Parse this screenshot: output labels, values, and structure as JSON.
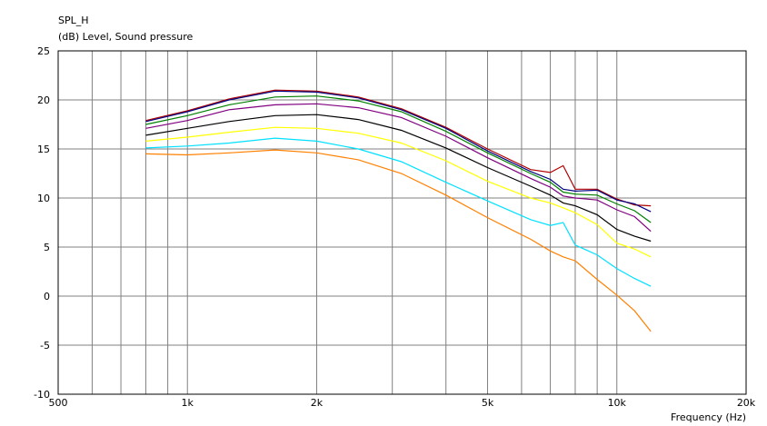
{
  "chart_data": {
    "type": "line",
    "title": "SPL_H",
    "ylabel": "(dB)  Level, Sound pressure",
    "xlabel": "Frequency  (Hz)",
    "xscale": "log",
    "xlim": [
      500,
      20000
    ],
    "ylim": [
      -10,
      25
    ],
    "grid": true,
    "x_ticks": [
      {
        "value": 500,
        "label": "500"
      },
      {
        "value": 1000,
        "label": "1k"
      },
      {
        "value": 2000,
        "label": "2k"
      },
      {
        "value": 5000,
        "label": "5k"
      },
      {
        "value": 10000,
        "label": "10k"
      },
      {
        "value": 20000,
        "label": "20k"
      }
    ],
    "y_ticks": [
      25,
      20,
      15,
      10,
      5,
      0,
      -5,
      -10
    ],
    "x": [
      800,
      1000,
      1250,
      1600,
      2000,
      2500,
      3150,
      4000,
      5000,
      6300,
      7000,
      7500,
      8000,
      9000,
      10000,
      11000,
      12000
    ],
    "series": [
      {
        "color": "#b00000",
        "values": [
          17.9,
          18.9,
          20.1,
          21.0,
          20.9,
          20.3,
          19.1,
          17.2,
          15.0,
          12.9,
          12.6,
          13.3,
          10.9,
          10.9,
          9.9,
          9.3,
          9.2
        ]
      },
      {
        "color": "#000080",
        "values": [
          17.8,
          18.8,
          20.0,
          20.9,
          20.8,
          20.2,
          19.0,
          17.1,
          14.8,
          12.7,
          11.9,
          10.9,
          10.7,
          10.8,
          9.8,
          9.4,
          8.6
        ]
      },
      {
        "color": "#008000",
        "values": [
          17.5,
          18.4,
          19.5,
          20.3,
          20.4,
          19.9,
          18.8,
          16.8,
          14.6,
          12.5,
          11.6,
          10.6,
          10.4,
          10.3,
          9.4,
          8.7,
          7.5
        ]
      },
      {
        "color": "#800080",
        "values": [
          17.1,
          17.9,
          19.0,
          19.5,
          19.6,
          19.2,
          18.2,
          16.3,
          14.1,
          12.0,
          11.1,
          10.2,
          10.0,
          9.8,
          8.8,
          8.1,
          6.6
        ]
      },
      {
        "color": "#000000",
        "values": [
          16.4,
          17.1,
          17.8,
          18.4,
          18.5,
          18.0,
          16.9,
          15.1,
          13.1,
          11.2,
          10.3,
          9.5,
          9.2,
          8.3,
          6.8,
          6.1,
          5.6
        ]
      },
      {
        "color": "#ffff00",
        "values": [
          15.8,
          16.2,
          16.7,
          17.2,
          17.1,
          16.6,
          15.6,
          13.8,
          11.7,
          10.0,
          9.5,
          9.0,
          8.5,
          7.3,
          5.4,
          4.8,
          4.0
        ]
      },
      {
        "color": "#00e0ff",
        "values": [
          15.1,
          15.3,
          15.6,
          16.1,
          15.8,
          15.0,
          13.7,
          11.6,
          9.7,
          7.8,
          7.2,
          7.5,
          5.2,
          4.2,
          2.8,
          1.8,
          1.0
        ]
      },
      {
        "color": "#ff8000",
        "values": [
          14.5,
          14.4,
          14.6,
          14.9,
          14.6,
          13.9,
          12.5,
          10.3,
          8.0,
          5.8,
          4.6,
          4.0,
          3.6,
          1.7,
          0.1,
          -1.5,
          -3.6
        ]
      }
    ]
  }
}
